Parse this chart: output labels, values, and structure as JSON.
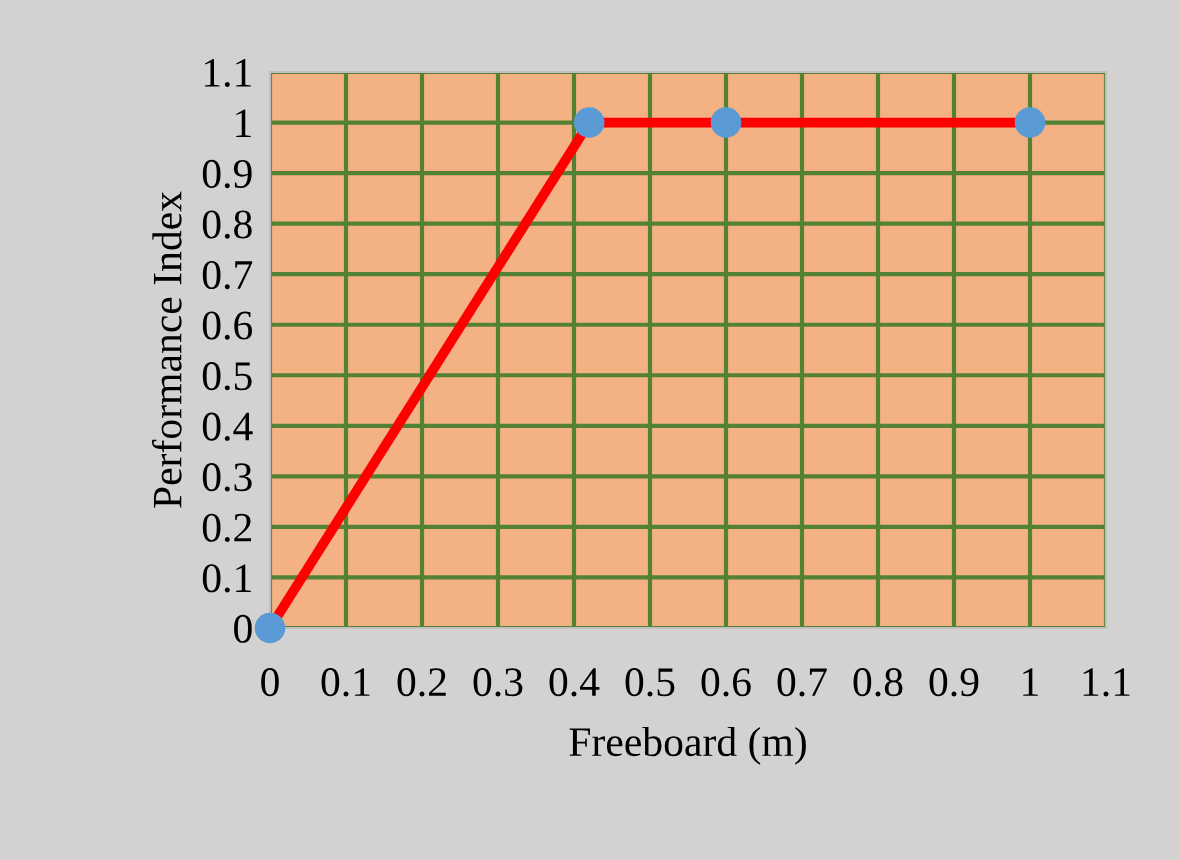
{
  "chart_data": {
    "type": "line",
    "xlabel": "Freeboard (m)",
    "ylabel": "Performance Index",
    "x": [
      0,
      0.42,
      0.6,
      1.0
    ],
    "series": [
      {
        "color": "#ff0000",
        "values": [
          0,
          1,
          1,
          1
        ]
      }
    ],
    "marker": "circle",
    "line_style": "solid",
    "grid": true,
    "xlim": [
      0,
      1.1
    ],
    "ylim": [
      0,
      1.1
    ],
    "xticks": [
      0,
      0.1,
      0.2,
      0.3,
      0.4,
      0.5,
      0.6,
      0.7,
      0.8,
      0.9,
      1,
      1.1
    ],
    "yticks": [
      0,
      0.1,
      0.2,
      0.3,
      0.4,
      0.5,
      0.6,
      0.7,
      0.8,
      0.9,
      1,
      1.1
    ]
  }
}
